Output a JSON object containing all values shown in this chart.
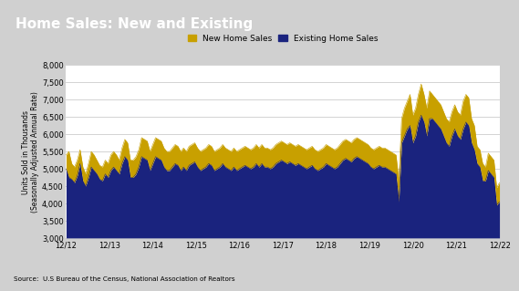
{
  "title": "Home Sales: New and Existing",
  "title_bg": "#4a4a4a",
  "title_color": "#ffffff",
  "ylabel": "Units Sold in Thousands\n(Seasonally Adjusted Annual Rate)",
  "source": "Source:  U.S Bureau of the Census, National Association of Realtors",
  "ylim": [
    3000,
    8000
  ],
  "yticks": [
    3000,
    3500,
    4000,
    4500,
    5000,
    5500,
    6000,
    6500,
    7000,
    7500,
    8000
  ],
  "xtick_labels": [
    "12/12",
    "12/13",
    "12/14",
    "12/15",
    "12/16",
    "12/17",
    "12/18",
    "12/19",
    "12/20",
    "12/21",
    "12/22"
  ],
  "existing_color": "#1a237e",
  "new_color": "#c8a000",
  "legend_new": "New Home Sales",
  "legend_existing": "Existing Home Sales",
  "plot_bg": "#ffffff",
  "fig_bg": "#d0d0d0",
  "existing_home_sales": [
    5000,
    4750,
    4700,
    4600,
    4800,
    5150,
    4650,
    4500,
    4750,
    5050,
    4950,
    4850,
    4700,
    4650,
    4850,
    4750,
    4950,
    5050,
    4950,
    4850,
    5150,
    5350,
    5250,
    4750,
    4750,
    4850,
    5050,
    5350,
    5300,
    5250,
    4950,
    5150,
    5350,
    5300,
    5250,
    5050,
    4950,
    4950,
    5050,
    5150,
    5100,
    4950,
    5050,
    4950,
    5100,
    5150,
    5200,
    5050,
    4950,
    5000,
    5050,
    5150,
    5100,
    4950,
    5000,
    5050,
    5150,
    5050,
    5000,
    4950,
    5050,
    4950,
    5000,
    5050,
    5100,
    5050,
    5000,
    5050,
    5150,
    5050,
    5150,
    5050,
    5050,
    5000,
    5050,
    5150,
    5200,
    5250,
    5200,
    5150,
    5200,
    5150,
    5100,
    5150,
    5100,
    5050,
    5000,
    5050,
    5100,
    5000,
    4950,
    5000,
    5050,
    5150,
    5100,
    5050,
    5000,
    5050,
    5150,
    5250,
    5300,
    5250,
    5200,
    5300,
    5350,
    5300,
    5250,
    5200,
    5150,
    5050,
    5000,
    5050,
    5100,
    5050,
    5050,
    5000,
    4950,
    4900,
    4850,
    4050,
    5750,
    5950,
    6150,
    6250,
    5750,
    5950,
    6350,
    6550,
    6350,
    5950,
    6450,
    6450,
    6350,
    6250,
    6150,
    5950,
    5750,
    5650,
    5950,
    6150,
    5950,
    5850,
    6150,
    6350,
    6250,
    5750,
    5550,
    5150,
    5050,
    4650,
    4650,
    4950,
    4850,
    4750,
    3950,
    4050
  ],
  "total_home_sales": [
    5400,
    5500,
    5150,
    5050,
    5250,
    5550,
    5050,
    4850,
    5150,
    5500,
    5400,
    5250,
    5100,
    5050,
    5250,
    5150,
    5400,
    5500,
    5400,
    5250,
    5600,
    5850,
    5750,
    5250,
    5250,
    5350,
    5550,
    5900,
    5850,
    5800,
    5500,
    5700,
    5900,
    5850,
    5800,
    5600,
    5500,
    5500,
    5600,
    5700,
    5650,
    5500,
    5600,
    5500,
    5650,
    5700,
    5750,
    5600,
    5500,
    5550,
    5600,
    5700,
    5650,
    5500,
    5550,
    5600,
    5700,
    5600,
    5550,
    5500,
    5600,
    5500,
    5550,
    5600,
    5650,
    5600,
    5550,
    5600,
    5700,
    5600,
    5700,
    5600,
    5600,
    5550,
    5600,
    5700,
    5750,
    5800,
    5750,
    5700,
    5750,
    5700,
    5650,
    5700,
    5650,
    5600,
    5550,
    5600,
    5650,
    5550,
    5500,
    5550,
    5600,
    5700,
    5650,
    5600,
    5550,
    5600,
    5700,
    5800,
    5850,
    5800,
    5750,
    5850,
    5900,
    5850,
    5800,
    5750,
    5700,
    5600,
    5550,
    5600,
    5650,
    5600,
    5600,
    5550,
    5500,
    5450,
    5400,
    4650,
    6450,
    6750,
    6950,
    7150,
    6550,
    6750,
    7150,
    7450,
    7150,
    6750,
    7250,
    7150,
    7050,
    6950,
    6850,
    6650,
    6450,
    6350,
    6650,
    6850,
    6650,
    6550,
    6950,
    7150,
    7050,
    6450,
    6250,
    5650,
    5550,
    5150,
    5050,
    5450,
    5350,
    5250,
    4450,
    4600
  ]
}
